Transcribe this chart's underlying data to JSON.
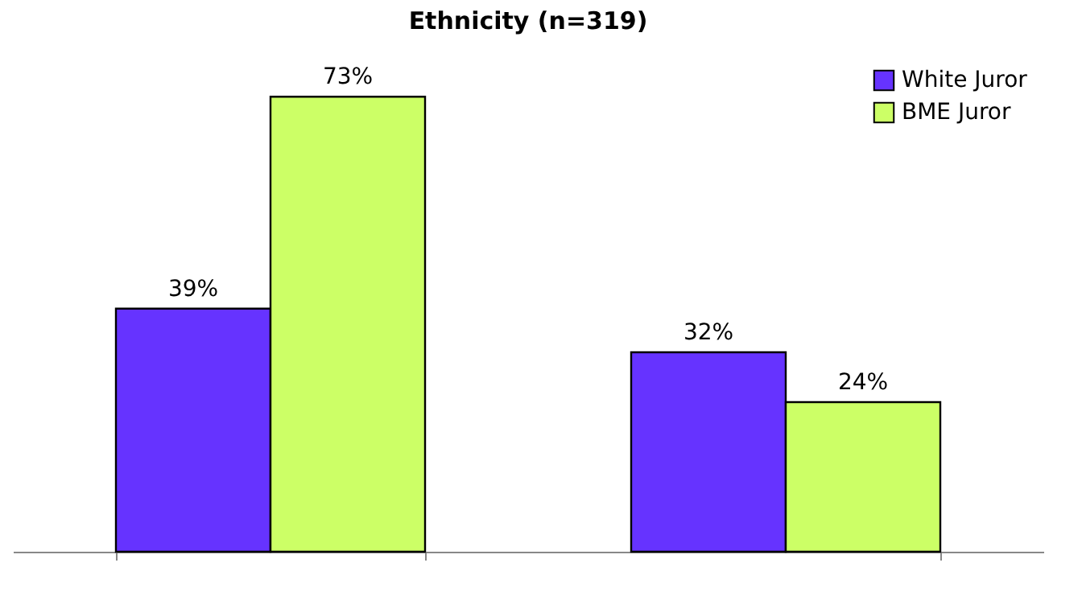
{
  "chart_data": {
    "type": "bar",
    "title": "Ethnicity (n=319)",
    "categories": [
      null,
      null
    ],
    "series": [
      {
        "name": "White Juror",
        "color": "#6633ff",
        "values": [
          39,
          32
        ],
        "value_labels": [
          "39%",
          "32%"
        ]
      },
      {
        "name": "BME Juror",
        "color": "#ccff66",
        "values": [
          73,
          24
        ],
        "value_labels": [
          "73%",
          "24%"
        ]
      }
    ],
    "legend": "top right",
    "grid": false
  }
}
